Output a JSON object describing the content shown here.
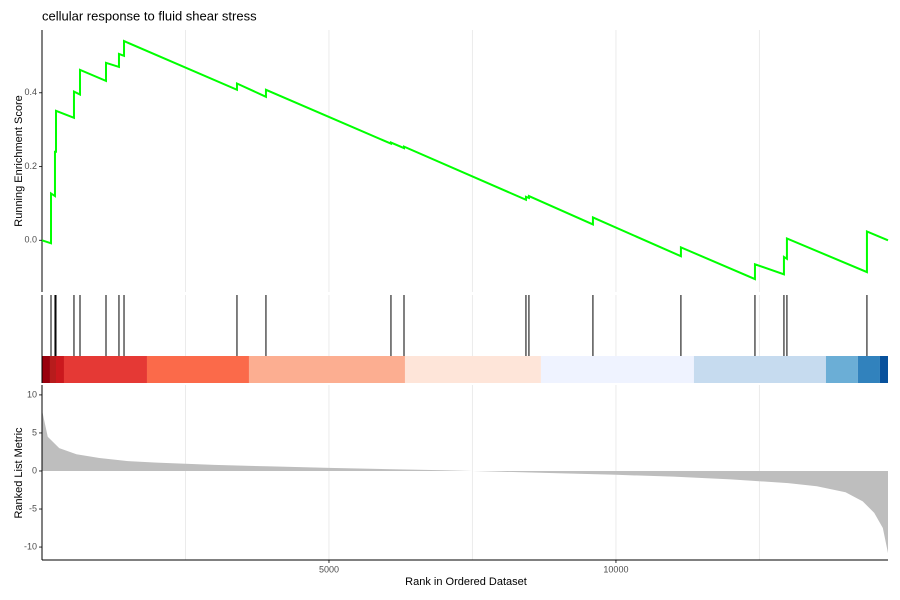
{
  "chart_data": [
    {
      "type": "line",
      "title": "cellular response to fluid shear stress",
      "ylabel": "Running Enrichment Score",
      "color": "#00ff00",
      "x": [
        0,
        157,
        157,
        226,
        226,
        244,
        244,
        557,
        557,
        662,
        662,
        1115,
        1115,
        1341,
        1341,
        1429,
        1429,
        3397,
        3397,
        3902,
        3902,
        6080,
        6080,
        6307,
        6307,
        8432,
        8432,
        8484,
        8484,
        9599,
        9599,
        11132,
        11132,
        12422,
        12422,
        12927,
        12927,
        12979,
        12979,
        14373,
        14373,
        14740
      ],
      "values": [
        0,
        -0.008,
        0.127,
        0.12,
        0.24,
        0.24,
        0.351,
        0.332,
        0.403,
        0.395,
        0.462,
        0.432,
        0.481,
        0.47,
        0.505,
        0.5,
        0.54,
        0.408,
        0.425,
        0.389,
        0.408,
        0.262,
        0.265,
        0.25,
        0.254,
        0.11,
        0.118,
        0.115,
        0.12,
        0.043,
        0.062,
        -0.043,
        -0.019,
        -0.105,
        -0.065,
        -0.092,
        -0.045,
        -0.05,
        0.005,
        -0.086,
        0.024,
        0
      ],
      "xlim": [
        0,
        14740
      ],
      "ylim": [
        -0.14,
        0.57
      ],
      "yticks": [
        {
          "value": 0,
          "label": "0.0"
        },
        {
          "value": 0.2,
          "label": "0.2"
        },
        {
          "value": 0.4,
          "label": "0.4"
        }
      ],
      "xgrid": [
        2500,
        5000,
        7500,
        10000,
        12500
      ],
      "grid": true
    },
    {
      "type": "hits",
      "hits": [
        157,
        226,
        244,
        557,
        662,
        1115,
        1341,
        1429,
        3397,
        3902,
        6080,
        6307,
        8432,
        8484,
        9599,
        11132,
        12422,
        12927,
        12979,
        14373
      ],
      "band_edges": [
        0,
        139,
        244,
        383,
        1829,
        3606,
        6324,
        8693,
        11359,
        13659,
        14216,
        14600,
        14740
      ],
      "band_colors": [
        "#99000d",
        "#b71c1c",
        "#cb181d",
        "#e53935",
        "#fb6a4a",
        "#fcae91",
        "#fee5d9",
        "#eff3ff",
        "#c6dbef",
        "#6baed6",
        "#3182bd",
        "#08519c"
      ],
      "xlim": [
        0,
        14740
      ],
      "xgrid": [
        2500,
        5000,
        7500,
        10000,
        12500
      ]
    },
    {
      "type": "area",
      "ylabel": "Ranked List Metric",
      "xlabel": "Rank in Ordered Dataset",
      "color": "#bebebe",
      "x": [
        0,
        100,
        300,
        600,
        1000,
        1500,
        2000,
        3000,
        4000,
        5000,
        6000,
        7000,
        7500,
        8000,
        9000,
        10000,
        11000,
        12000,
        13000,
        13500,
        14000,
        14300,
        14500,
        14650,
        14740
      ],
      "values": [
        8,
        4.5,
        3,
        2.2,
        1.7,
        1.3,
        1.1,
        0.8,
        0.6,
        0.4,
        0.25,
        0.1,
        0,
        -0.1,
        -0.3,
        -0.5,
        -0.75,
        -1.1,
        -1.6,
        -2,
        -2.8,
        -4,
        -5.5,
        -7.5,
        -10.8
      ],
      "xlim": [
        0,
        14740
      ],
      "ylim": [
        -11.7,
        11.3
      ],
      "yticks": [
        10,
        5,
        0,
        -5,
        -10
      ],
      "xticks": [
        5000,
        10000
      ],
      "xgrid": [
        2500,
        5000,
        7500,
        10000,
        12500
      ],
      "grid": true
    }
  ]
}
